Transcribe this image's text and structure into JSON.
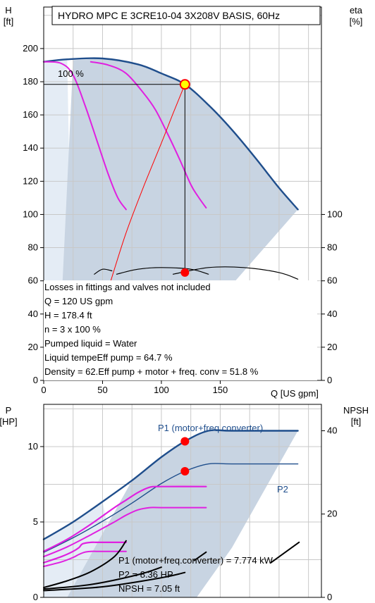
{
  "colors": {
    "curve": "#1f4e8c",
    "magenta": "#e020e0",
    "operating_point": "#ff0000",
    "area": "#c8d4e2",
    "area_light": "#e4ecf5",
    "grid": "#c8c8c8"
  },
  "chart_data": [
    {
      "type": "line",
      "title": "HYDRO MPC E 3CRE10-04 3X208V BASIS, 60Hz",
      "xlabel": "Q [US gpm]",
      "ylabel": "H\n[ft]",
      "ylabel_lines": [
        "H",
        "[ft]"
      ],
      "y2label_lines": [
        "eta",
        "[%]"
      ],
      "xlim": [
        0,
        236
      ],
      "ylim": [
        0,
        225
      ],
      "y2lim": [
        0,
        225
      ],
      "x_ticks": [
        0,
        50,
        100,
        150
      ],
      "y_ticks": [
        0,
        20,
        40,
        60,
        80,
        100,
        120,
        140,
        160,
        180,
        200
      ],
      "y2_ticks": [
        0,
        20,
        40,
        60,
        80,
        100
      ],
      "grid": true,
      "series": [
        {
          "name": "H",
          "style": "curve",
          "x": [
            0,
            20,
            50,
            80,
            100,
            120,
            140,
            160,
            180,
            200,
            216
          ],
          "y": [
            192,
            193.5,
            194,
            190.5,
            185,
            178.4,
            166,
            151,
            134,
            116,
            103
          ]
        },
        {
          "style": "magenta",
          "x": [
            0,
            15,
            25,
            35,
            45,
            55,
            63,
            70
          ],
          "y": [
            192,
            191,
            184,
            166,
            145,
            124,
            110,
            103
          ]
        },
        {
          "style": "magenta",
          "x": [
            40,
            55,
            70,
            85,
            95,
            105,
            115,
            125,
            131,
            138
          ],
          "y": [
            192,
            190,
            185,
            173,
            163,
            149,
            134,
            118,
            111,
            104
          ]
        },
        {
          "style": "system",
          "x": [
            57,
            70,
            85,
            100,
            110,
            120
          ],
          "y": [
            60,
            89,
            117,
            143,
            161,
            178.4
          ]
        },
        {
          "style": "vline",
          "x": [
            120,
            120
          ],
          "y": [
            178.4,
            65
          ]
        },
        {
          "style": "hline",
          "x": [
            0,
            120
          ],
          "y": [
            178.4,
            178.4
          ]
        },
        {
          "style": "eta",
          "x": [
            43,
            50,
            58
          ],
          "y": [
            64,
            67,
            66
          ]
        },
        {
          "style": "eta",
          "x": [
            62,
            80,
            100,
            125,
            140
          ],
          "y": [
            64,
            67,
            68,
            67,
            64
          ]
        },
        {
          "style": "eta",
          "x": [
            110,
            140,
            170,
            200,
            216
          ],
          "y": [
            64,
            68,
            68,
            65,
            61
          ]
        },
        {
          "style": "eta_tick",
          "x": [
            204,
            218
          ],
          "y": [
            51,
            47
          ]
        }
      ],
      "markers": [
        {
          "name": "duty-point",
          "x": 120,
          "y": 178.4,
          "style": "yellow"
        },
        {
          "name": "eta-point",
          "x": 120,
          "y": 65,
          "style": "red"
        }
      ],
      "head_label": "100 %",
      "annotations": [
        "Losses in fittings and valves not included",
        "Q = 120 US gpm",
        "H = 178.4 ft",
        "n = 3 x 100 %",
        "Pumped liquid = Water",
        "Liquid tempeEff pump = 64.7 %",
        "Density = 62.Eff pump + motor + freq. conv = 51.8 %"
      ]
    },
    {
      "type": "line",
      "ylabel_lines": [
        "P",
        "[HP]"
      ],
      "y2label_lines": [
        "NPSH",
        "[ft]"
      ],
      "xlim": [
        0,
        236
      ],
      "ylim": [
        0,
        12.8
      ],
      "y_ticks": [
        0,
        5,
        10
      ],
      "y2_ticks": [
        0,
        20,
        40
      ],
      "y2_values": [
        0,
        20,
        40
      ],
      "grid": true,
      "series": [
        {
          "name": "P1 (motor+freq.converter)",
          "style": "curve",
          "x": [
            0,
            25,
            50,
            75,
            100,
            120,
            140,
            160,
            216
          ],
          "y": [
            3.85,
            5.0,
            6.35,
            7.75,
            9.3,
            10.35,
            11.05,
            11.05,
            11.05
          ]
        },
        {
          "name": "P2",
          "style": "curve_thin",
          "x": [
            0,
            25,
            50,
            75,
            100,
            120,
            140,
            160,
            216
          ],
          "y": [
            2.98,
            3.95,
            5.05,
            6.25,
            7.55,
            8.36,
            8.85,
            8.85,
            8.85
          ]
        },
        {
          "style": "magenta_thick",
          "x": [
            0,
            20,
            40,
            60,
            70,
            80,
            90,
            100,
            138
          ],
          "y": [
            3.05,
            3.85,
            4.85,
            5.95,
            6.45,
            6.95,
            7.3,
            7.35,
            7.35
          ]
        },
        {
          "style": "magenta",
          "x": [
            0,
            20,
            40,
            60,
            70,
            80,
            90,
            100,
            138
          ],
          "y": [
            2.7,
            3.35,
            4.15,
            5.0,
            5.45,
            5.8,
            5.95,
            5.95,
            5.95
          ]
        },
        {
          "style": "magenta_thick",
          "x": [
            0,
            15,
            25,
            30,
            33,
            40,
            45,
            50,
            70
          ],
          "y": [
            2.3,
            2.7,
            3.05,
            3.3,
            3.55,
            3.65,
            3.65,
            3.65,
            3.65
          ]
        },
        {
          "style": "magenta",
          "x": [
            0,
            15,
            25,
            30,
            35,
            40,
            45,
            50,
            70
          ],
          "y": [
            2.05,
            2.35,
            2.65,
            2.85,
            3.0,
            3.05,
            3.05,
            3.05,
            3.05
          ]
        },
        {
          "style": "npsh",
          "x": [
            0,
            20,
            40,
            60,
            70
          ],
          "y": [
            0.65,
            1.1,
            1.7,
            2.7,
            3.75
          ]
        },
        {
          "style": "npsh",
          "x": [
            0,
            40,
            80,
            100
          ],
          "y": [
            0.55,
            0.85,
            1.5,
            2.0
          ]
        },
        {
          "style": "npsh",
          "x": [
            0,
            50,
            100,
            120
          ],
          "y": [
            0.45,
            0.7,
            1.3,
            1.65
          ]
        },
        {
          "style": "npsh",
          "x": [
            128,
            138
          ],
          "y": [
            2.45,
            3.0
          ]
        },
        {
          "style": "npsh",
          "x": [
            193,
            217
          ],
          "y": [
            2.3,
            3.65
          ]
        }
      ],
      "markers": [
        {
          "name": "p1-point",
          "x": 120,
          "y": 10.35,
          "style": "red"
        },
        {
          "name": "p2-point",
          "x": 120,
          "y": 8.36,
          "style": "red"
        }
      ],
      "series_labels": [
        "P1 (motor+freq.converter)",
        "P2"
      ],
      "annotations": [
        "P1 (motor+freq.converter) = 7.774 kW",
        "P2 = 8.36 HP",
        "NPSH = 7.05 ft"
      ]
    }
  ]
}
